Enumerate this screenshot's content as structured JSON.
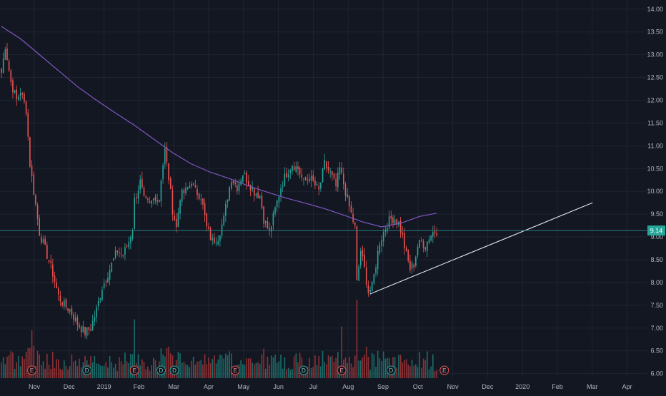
{
  "theme": {
    "background": "#131722",
    "grid": "#1f2433",
    "axis_text": "#b2b5be",
    "up": "#26a69a",
    "down": "#ef5350",
    "volume_up": "#1f8a80",
    "volume_down": "#b83b3b",
    "ma_line": "#7e57c2",
    "trendline": "#e0e3eb",
    "price_line": "#2a7f86",
    "last_price_bg": "#26a69a"
  },
  "chart_data": {
    "type": "candlestick",
    "price_scale": {
      "min": 5.9,
      "max": 14.2,
      "ticks": [
        "14.00",
        "13.50",
        "13.00",
        "12.50",
        "12.00",
        "11.50",
        "11.00",
        "10.50",
        "10.00",
        "9.50",
        "9.00",
        "8.50",
        "8.00",
        "7.50",
        "7.00",
        "6.50",
        "6.00"
      ]
    },
    "time_axis_labels": [
      "Nov",
      "Dec",
      "2019",
      "Feb",
      "Mar",
      "Apr",
      "May",
      "Jun",
      "Jul",
      "Aug",
      "Sep",
      "Oct",
      "Nov",
      "Dec",
      "2020",
      "Feb",
      "Mar",
      "Apr"
    ],
    "grid": true,
    "last_price": "9.14",
    "close_anchors": [
      [
        0,
        12.6
      ],
      [
        2,
        13.2
      ],
      [
        5,
        12.4
      ],
      [
        8,
        12.0
      ],
      [
        10,
        12.2
      ],
      [
        13,
        11.8
      ],
      [
        15,
        10.6
      ],
      [
        20,
        9.1
      ],
      [
        24,
        8.6
      ],
      [
        27,
        8.2
      ],
      [
        30,
        7.7
      ],
      [
        33,
        7.5
      ],
      [
        36,
        7.4
      ],
      [
        40,
        7.1
      ],
      [
        44,
        6.9
      ],
      [
        47,
        7.0
      ],
      [
        50,
        7.4
      ],
      [
        53,
        7.9
      ],
      [
        57,
        8.3
      ],
      [
        61,
        8.7
      ],
      [
        64,
        8.6
      ],
      [
        67,
        8.9
      ],
      [
        69,
        9.2
      ],
      [
        70,
        9.8
      ],
      [
        73,
        10.2
      ],
      [
        75,
        9.8
      ],
      [
        78,
        9.7
      ],
      [
        81,
        9.9
      ],
      [
        83,
        9.8
      ],
      [
        84,
        10.3
      ],
      [
        86,
        10.9
      ],
      [
        88,
        10.3
      ],
      [
        90,
        9.6
      ],
      [
        92,
        9.2
      ],
      [
        94,
        9.9
      ],
      [
        97,
        10.0
      ],
      [
        100,
        10.2
      ],
      [
        102,
        10.0
      ],
      [
        105,
        9.9
      ],
      [
        108,
        9.2
      ],
      [
        111,
        8.9
      ],
      [
        114,
        9.0
      ],
      [
        117,
        9.4
      ],
      [
        119,
        9.9
      ],
      [
        121,
        10.3
      ],
      [
        124,
        10.1
      ],
      [
        127,
        10.4
      ],
      [
        130,
        10.2
      ],
      [
        133,
        10.0
      ],
      [
        136,
        9.9
      ],
      [
        138,
        9.4
      ],
      [
        141,
        9.1
      ],
      [
        144,
        9.6
      ],
      [
        147,
        10.1
      ],
      [
        150,
        10.4
      ],
      [
        153,
        10.6
      ],
      [
        156,
        10.5
      ],
      [
        159,
        10.2
      ],
      [
        162,
        10.3
      ],
      [
        164,
        10.2
      ],
      [
        167,
        10.0
      ],
      [
        170,
        10.6
      ],
      [
        173,
        10.4
      ],
      [
        176,
        10.1
      ],
      [
        178,
        10.5
      ],
      [
        181,
        10.0
      ],
      [
        184,
        9.5
      ],
      [
        186,
        9.2
      ],
      [
        187,
        8.0
      ],
      [
        189,
        8.7
      ],
      [
        191,
        8.3
      ],
      [
        193,
        7.8
      ],
      [
        195,
        7.9
      ],
      [
        197,
        8.4
      ],
      [
        199,
        8.9
      ],
      [
        201,
        9.1
      ],
      [
        203,
        9.3
      ],
      [
        205,
        9.4
      ],
      [
        207,
        9.4
      ],
      [
        209,
        9.3
      ],
      [
        211,
        9.0
      ],
      [
        213,
        8.6
      ],
      [
        215,
        8.3
      ],
      [
        217,
        8.4
      ],
      [
        219,
        8.8
      ],
      [
        221,
        8.9
      ],
      [
        223,
        8.8
      ],
      [
        225,
        9.0
      ],
      [
        227,
        9.1
      ],
      [
        229,
        9.14
      ]
    ],
    "moving_average": [
      [
        0,
        13.62
      ],
      [
        10,
        13.35
      ],
      [
        20,
        13.0
      ],
      [
        30,
        12.65
      ],
      [
        40,
        12.3
      ],
      [
        50,
        12.0
      ],
      [
        60,
        11.72
      ],
      [
        70,
        11.45
      ],
      [
        80,
        11.15
      ],
      [
        90,
        10.85
      ],
      [
        100,
        10.6
      ],
      [
        110,
        10.42
      ],
      [
        120,
        10.28
      ],
      [
        130,
        10.12
      ],
      [
        140,
        9.98
      ],
      [
        150,
        9.85
      ],
      [
        160,
        9.74
      ],
      [
        170,
        9.62
      ],
      [
        180,
        9.48
      ],
      [
        190,
        9.33
      ],
      [
        200,
        9.22
      ],
      [
        210,
        9.3
      ],
      [
        220,
        9.45
      ],
      [
        229,
        9.52
      ]
    ],
    "trendline": {
      "from": [
        194,
        7.75
      ],
      "to": [
        311,
        9.75
      ]
    },
    "event_markers": [
      {
        "label": "E",
        "at": 16
      },
      {
        "label": "D",
        "at": 45
      },
      {
        "label": "E",
        "at": 70
      },
      {
        "label": "D",
        "at": 84
      },
      {
        "label": "D",
        "at": 91
      },
      {
        "label": "E",
        "at": 123
      },
      {
        "label": "D",
        "at": 159
      },
      {
        "label": "E",
        "at": 179
      },
      {
        "label": "D",
        "at": 205
      },
      {
        "label": "E",
        "at": 233
      }
    ]
  }
}
